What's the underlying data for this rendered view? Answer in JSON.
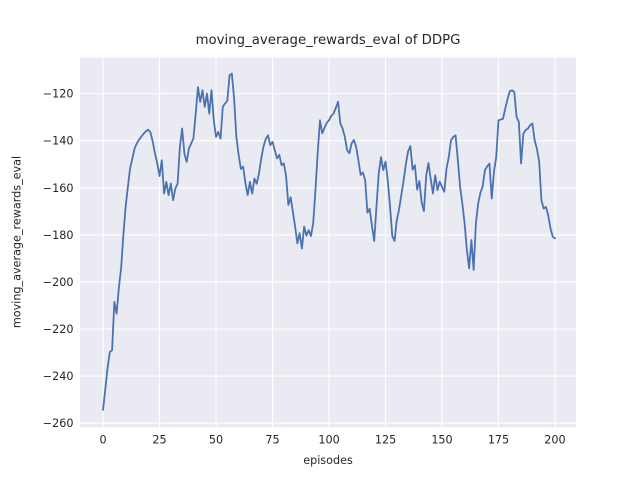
{
  "style": {
    "figure_background": "#ffffff",
    "axes_background": "#eaeaf2",
    "grid_color": "#ffffff",
    "text_color": "#262626",
    "line_color": "#4c72b0"
  },
  "chart_data": {
    "type": "line",
    "title": "moving_average_rewards_eval of DDPG",
    "xlabel": "episodes",
    "ylabel": "moving_average_rewards_eval",
    "grid": true,
    "legend": false,
    "xlim": [
      -10.2,
      209.3
    ],
    "ylim": [
      -261.7,
      -104.7
    ],
    "xticks": [
      0,
      25,
      50,
      75,
      100,
      125,
      150,
      175,
      200
    ],
    "yticks": [
      -120,
      -140,
      -160,
      -180,
      -200,
      -220,
      -240,
      -260
    ],
    "series": [
      {
        "name": "moving_average_rewards_eval",
        "color": "#4c72b0",
        "x_start": 0,
        "x_step": 1,
        "values": [
          -254.3,
          -245.5,
          -236.5,
          -229.8,
          -229.0,
          -208.5,
          -213.5,
          -202.5,
          -194.0,
          -180.0,
          -168.0,
          -159.5,
          -151.5,
          -147.5,
          -143.2,
          -141.0,
          -139.5,
          -138.2,
          -137.0,
          -136.0,
          -135.3,
          -136.5,
          -140.5,
          -145.5,
          -149.7,
          -155.0,
          -148.3,
          -162.4,
          -157.5,
          -163.1,
          -158.2,
          -165.3,
          -160.3,
          -158.2,
          -142.6,
          -134.8,
          -145.5,
          -149.0,
          -143.3,
          -141.2,
          -139.0,
          -128.5,
          -117.2,
          -123.5,
          -118.6,
          -125.6,
          -120.0,
          -128.5,
          -118.6,
          -131.3,
          -138.4,
          -136.3,
          -139.1,
          -125.6,
          -124.2,
          -123.0,
          -112.2,
          -111.5,
          -122.1,
          -138.4,
          -146.0,
          -152.0,
          -151.0,
          -158.0,
          -163.1,
          -157.5,
          -162.5,
          -156.1,
          -158.3,
          -153.9,
          -147.6,
          -142.5,
          -139.3,
          -137.7,
          -141.9,
          -140.5,
          -144.0,
          -147.5,
          -146.0,
          -150.4,
          -149.6,
          -155.0,
          -167.3,
          -164.0,
          -170.2,
          -176.5,
          -183.6,
          -179.3,
          -185.8,
          -176.5,
          -180.3,
          -178.0,
          -180.5,
          -175.0,
          -161.0,
          -145.0,
          -131.3,
          -136.9,
          -134.5,
          -132.4,
          -131.3,
          -129.4,
          -128.5,
          -126.1,
          -123.5,
          -132.7,
          -134.8,
          -138.4,
          -144.0,
          -145.3,
          -141.2,
          -139.7,
          -142.6,
          -148.3,
          -154.5,
          -153.5,
          -156.8,
          -170.6,
          -168.9,
          -176.3,
          -182.6,
          -168.0,
          -153.9,
          -147.0,
          -152.5,
          -148.9,
          -157.0,
          -168.0,
          -180.5,
          -182.6,
          -173.7,
          -169.2,
          -163.0,
          -157.0,
          -150.0,
          -144.5,
          -142.3,
          -152.3,
          -150.4,
          -160.8,
          -157.1,
          -166.2,
          -169.9,
          -155.0,
          -149.5,
          -156.2,
          -162.4,
          -154.7,
          -161.0,
          -157.4,
          -159.6,
          -161.7,
          -151.9,
          -146.9,
          -139.8,
          -138.4,
          -137.7,
          -148.1,
          -159.6,
          -166.7,
          -175.1,
          -186.4,
          -194.2,
          -182.2,
          -194.9,
          -175.1,
          -166.7,
          -162.1,
          -159.4,
          -152.5,
          -150.9,
          -149.7,
          -164.6,
          -153.2,
          -146.9,
          -131.4,
          -131.0,
          -130.7,
          -126.3,
          -122.3,
          -119.0,
          -118.6,
          -119.3,
          -129.9,
          -132.0,
          -149.7,
          -137.0,
          -135.5,
          -134.9,
          -133.4,
          -132.7,
          -139.8,
          -143.4,
          -148.9,
          -165.3,
          -168.8,
          -168.1,
          -171.6,
          -177.2,
          -180.8,
          -181.5
        ]
      }
    ]
  }
}
